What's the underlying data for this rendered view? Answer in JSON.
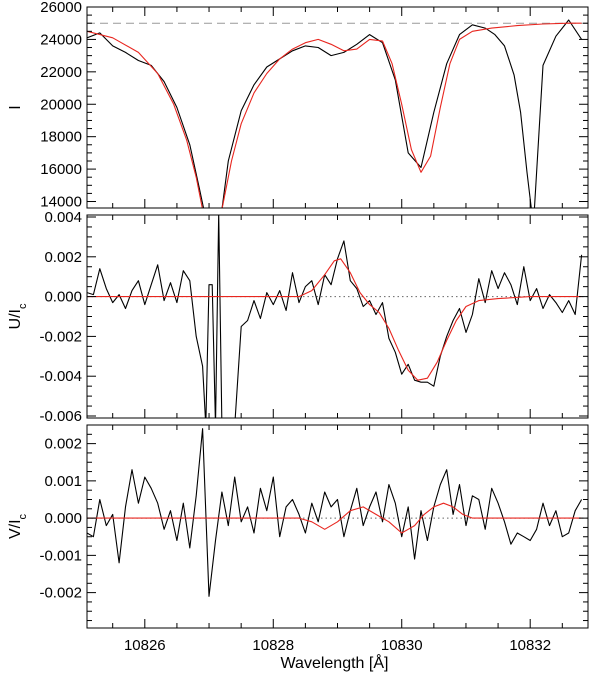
{
  "chart_data": [
    {
      "type": "line",
      "ylabel": "I",
      "ylabel_sub": "",
      "xlim": [
        10825.1,
        10832.9
      ],
      "ylim": [
        13600,
        26000
      ],
      "x_ticks": [
        10826,
        10828,
        10830,
        10832
      ],
      "y_ticks": [
        14000,
        16000,
        18000,
        20000,
        22000,
        24000,
        26000
      ],
      "y_tick_labels": [
        "14000",
        "16000",
        "18000",
        "20000",
        "22000",
        "24000",
        "26000"
      ],
      "show_x_tick_labels": false,
      "reference_line": {
        "y": 25000,
        "style": "dashed",
        "color": "#999999"
      },
      "series": [
        {
          "color": "#000000",
          "x": [
            10825.1,
            10825.3,
            10825.5,
            10825.7,
            10825.9,
            10826.1,
            10826.3,
            10826.5,
            10826.7,
            10826.85,
            10827.0,
            10827.15,
            10827.3,
            10827.5,
            10827.7,
            10827.9,
            10828.1,
            10828.3,
            10828.5,
            10828.7,
            10828.9,
            10829.1,
            10829.3,
            10829.5,
            10829.7,
            10829.9,
            10830.1,
            10830.3,
            10830.5,
            10830.7,
            10830.9,
            10831.1,
            10831.3,
            10831.45,
            10831.6,
            10831.75,
            10831.85,
            10831.95,
            10832.05,
            10832.2,
            10832.4,
            10832.6,
            10832.8
          ],
          "y": [
            24100,
            24400,
            23600,
            23200,
            22700,
            22400,
            21400,
            19800,
            17500,
            14800,
            12000,
            12000,
            16500,
            19600,
            21200,
            22300,
            22800,
            23300,
            23600,
            23500,
            23000,
            23200,
            23700,
            24300,
            23800,
            21500,
            17000,
            16100,
            19500,
            22500,
            24300,
            24900,
            24700,
            24300,
            23600,
            21800,
            19500,
            15800,
            12500,
            22400,
            24200,
            25200,
            24000
          ]
        },
        {
          "color": "#e8261f",
          "x": [
            10825.1,
            10825.5,
            10825.9,
            10826.2,
            10826.45,
            10826.65,
            10826.8,
            10826.9,
            10827.0,
            10827.1,
            10827.2,
            10827.35,
            10827.5,
            10827.7,
            10827.9,
            10828.1,
            10828.3,
            10828.5,
            10828.7,
            10828.9,
            10829.1,
            10829.3,
            10829.5,
            10829.7,
            10829.85,
            10830.0,
            10830.15,
            10830.3,
            10830.45,
            10830.6,
            10830.75,
            10830.9,
            10831.1,
            10831.4,
            10831.8,
            10832.2,
            10832.6,
            10832.8
          ],
          "y": [
            24500,
            24100,
            23200,
            21900,
            20000,
            17800,
            15500,
            13500,
            11800,
            11600,
            13500,
            16500,
            18800,
            20700,
            21900,
            22800,
            23400,
            23800,
            24000,
            23700,
            23300,
            23400,
            24000,
            23900,
            22500,
            20000,
            17200,
            15800,
            16800,
            19800,
            22500,
            24000,
            24500,
            24700,
            24850,
            24950,
            25000,
            25000
          ]
        }
      ]
    },
    {
      "type": "line",
      "ylabel": "U/I",
      "ylabel_sub": "c",
      "xlim": [
        10825.1,
        10832.9
      ],
      "ylim": [
        -0.0061,
        0.0041
      ],
      "x_ticks": [
        10826,
        10828,
        10830,
        10832
      ],
      "y_ticks": [
        -0.006,
        -0.004,
        -0.002,
        0.0,
        0.002,
        0.004
      ],
      "y_tick_labels": [
        "-0.006",
        "-0.004",
        "-0.002",
        "0.000",
        "0.002",
        "0.004"
      ],
      "show_x_tick_labels": false,
      "reference_line": {
        "y": 0.0,
        "style": "dotted",
        "color": "#666666"
      },
      "series": [
        {
          "color": "#000000",
          "x": [
            10825.1,
            10825.2,
            10825.3,
            10825.4,
            10825.5,
            10825.6,
            10825.7,
            10825.8,
            10825.9,
            10826.0,
            10826.1,
            10826.2,
            10826.3,
            10826.4,
            10826.5,
            10826.6,
            10826.7,
            10826.8,
            10826.9,
            10826.95,
            10827.0,
            10827.05,
            10827.1,
            10827.15,
            10827.2,
            10827.3,
            10827.4,
            10827.5,
            10827.6,
            10827.7,
            10827.8,
            10827.9,
            10828.0,
            10828.1,
            10828.2,
            10828.3,
            10828.4,
            10828.5,
            10828.6,
            10828.7,
            10828.8,
            10828.9,
            10829.0,
            10829.1,
            10829.2,
            10829.3,
            10829.4,
            10829.5,
            10829.6,
            10829.7,
            10829.8,
            10829.9,
            10830.0,
            10830.1,
            10830.2,
            10830.3,
            10830.4,
            10830.5,
            10830.6,
            10830.7,
            10830.8,
            10830.9,
            10831.0,
            10831.1,
            10831.2,
            10831.3,
            10831.4,
            10831.5,
            10831.6,
            10831.7,
            10831.8,
            10831.9,
            10832.0,
            10832.1,
            10832.2,
            10832.3,
            10832.4,
            10832.5,
            10832.6,
            10832.7,
            10832.8
          ],
          "y": [
            0.0002,
            0.0001,
            0.0014,
            0.0004,
            -0.0003,
            0.0001,
            -0.0006,
            0.0003,
            0.0008,
            -0.0004,
            0.0006,
            0.0016,
            -0.0002,
            0.0007,
            -0.0003,
            0.0013,
            0.0008,
            -0.002,
            -0.0035,
            -0.0065,
            0.0006,
            0.0006,
            -0.0065,
            0.0042,
            -0.0065,
            -0.0065,
            -0.0065,
            -0.0015,
            -0.0012,
            -0.0002,
            -0.0011,
            0.0002,
            -0.0004,
            0.0003,
            -0.0007,
            0.0012,
            -0.0003,
            0.0005,
            0.0008,
            -0.0004,
            0.0011,
            0.0006,
            0.0019,
            0.0028,
            0.0008,
            0.0004,
            -0.0005,
            -0.0002,
            -0.0009,
            -0.0003,
            -0.0021,
            -0.0028,
            -0.0039,
            -0.0034,
            -0.0042,
            -0.0043,
            -0.0043,
            -0.0045,
            -0.003,
            -0.002,
            -0.0012,
            -0.0006,
            -0.0018,
            -0.0009,
            0.0009,
            -0.0003,
            0.0013,
            0.0004,
            0.0012,
            0.0006,
            -0.0004,
            0.0015,
            -0.0002,
            0.0004,
            -0.0006,
            0.0001,
            -0.0003,
            -0.0008,
            -0.0002,
            -0.0009,
            0.0021
          ]
        },
        {
          "color": "#e8261f",
          "x": [
            10825.1,
            10828.4,
            10828.6,
            10828.8,
            10828.95,
            10829.05,
            10829.2,
            10829.35,
            10829.5,
            10829.65,
            10829.8,
            10829.95,
            10830.1,
            10830.25,
            10830.4,
            10830.55,
            10830.7,
            10830.85,
            10831.0,
            10831.2,
            10831.5,
            10832.0,
            10832.8
          ],
          "y": [
            0.0,
            0.0,
            0.0003,
            0.0011,
            0.0018,
            0.0019,
            0.0012,
            0.0002,
            -0.0004,
            -0.0008,
            -0.0016,
            -0.0027,
            -0.0037,
            -0.0042,
            -0.0041,
            -0.0033,
            -0.0022,
            -0.0012,
            -0.0005,
            -0.0002,
            -0.0001,
            0.0,
            0.0
          ]
        }
      ]
    },
    {
      "type": "line",
      "ylabel": "V/I",
      "ylabel_sub": "c",
      "xlim": [
        10825.1,
        10832.9
      ],
      "ylim": [
        -0.00295,
        0.0025
      ],
      "x_ticks": [
        10826,
        10828,
        10830,
        10832
      ],
      "y_ticks": [
        -0.002,
        -0.001,
        0.0,
        0.001,
        0.002
      ],
      "y_tick_labels": [
        "-0.002",
        "-0.001",
        "0.000",
        "0.001",
        "0.002"
      ],
      "show_x_tick_labels": true,
      "x_tick_labels": [
        "10826",
        "10828",
        "10830",
        "10832"
      ],
      "xlabel": "Wavelength [Å]",
      "reference_line": {
        "y": 0.0,
        "style": "dotted",
        "color": "#666666"
      },
      "series": [
        {
          "color": "#000000",
          "x": [
            10825.1,
            10825.2,
            10825.3,
            10825.4,
            10825.5,
            10825.6,
            10825.7,
            10825.8,
            10825.9,
            10826.0,
            10826.1,
            10826.2,
            10826.3,
            10826.4,
            10826.5,
            10826.6,
            10826.7,
            10826.8,
            10826.9,
            10827.0,
            10827.1,
            10827.2,
            10827.3,
            10827.4,
            10827.5,
            10827.6,
            10827.7,
            10827.8,
            10827.9,
            10828.0,
            10828.1,
            10828.2,
            10828.3,
            10828.4,
            10828.5,
            10828.6,
            10828.7,
            10828.8,
            10828.9,
            10829.0,
            10829.1,
            10829.2,
            10829.3,
            10829.4,
            10829.5,
            10829.6,
            10829.7,
            10829.8,
            10829.9,
            10830.0,
            10830.1,
            10830.2,
            10830.3,
            10830.4,
            10830.5,
            10830.6,
            10830.7,
            10830.8,
            10830.9,
            10831.0,
            10831.1,
            10831.2,
            10831.3,
            10831.4,
            10831.5,
            10831.6,
            10831.7,
            10831.8,
            10831.9,
            10832.0,
            10832.1,
            10832.2,
            10832.3,
            10832.4,
            10832.5,
            10832.6,
            10832.7,
            10832.8
          ],
          "y": [
            -0.0004,
            -0.0005,
            0.0005,
            -0.0002,
            0.0001,
            -0.0012,
            0.0003,
            0.0013,
            0.0004,
            0.0011,
            0.0008,
            0.0004,
            -0.0003,
            0.0002,
            -0.0006,
            0.0004,
            -0.0008,
            0.0006,
            0.0024,
            -0.0021,
            -0.0006,
            0.0007,
            -0.0002,
            0.0011,
            -0.0001,
            0.0003,
            -0.0004,
            0.0008,
            0.0002,
            0.0011,
            -0.0005,
            0.0003,
            0.0005,
            0.0001,
            -0.0004,
            0.0004,
            -0.0001,
            0.0007,
            0.0003,
            0.0005,
            -0.0005,
            0.0002,
            0.0008,
            -0.0002,
            0.0003,
            0.0007,
            -0.0001,
            0.0009,
            0.0004,
            -0.0005,
            0.0003,
            -0.0011,
            0.0002,
            -0.0006,
            0.0003,
            0.0009,
            0.0013,
            0.0001,
            0.0009,
            -0.0002,
            0.0006,
            0.0005,
            -0.0003,
            0.0008,
            0.0004,
            -0.0001,
            -0.0007,
            -0.0004,
            -0.0005,
            -0.0006,
            -0.0003,
            0.0004,
            -0.0002,
            0.0002,
            -0.0005,
            -0.0004,
            0.0002,
            0.0005
          ]
        },
        {
          "color": "#e8261f",
          "x": [
            10825.1,
            10828.4,
            10828.6,
            10828.8,
            10829.0,
            10829.2,
            10829.4,
            10829.6,
            10829.8,
            10830.0,
            10830.1,
            10830.2,
            10830.35,
            10830.5,
            10830.65,
            10830.8,
            10830.95,
            10831.1,
            10831.3,
            10831.6,
            10832.8
          ],
          "y": [
            0.0,
            0.0,
            -0.0001,
            -0.0003,
            -0.0001,
            0.0002,
            0.0003,
            0.0001,
            -0.0001,
            -0.0004,
            -0.0003,
            -0.0002,
            0.0001,
            0.0003,
            0.0004,
            0.0003,
            0.0001,
            0.0,
            0.0,
            0.0,
            0.0
          ]
        }
      ]
    }
  ]
}
